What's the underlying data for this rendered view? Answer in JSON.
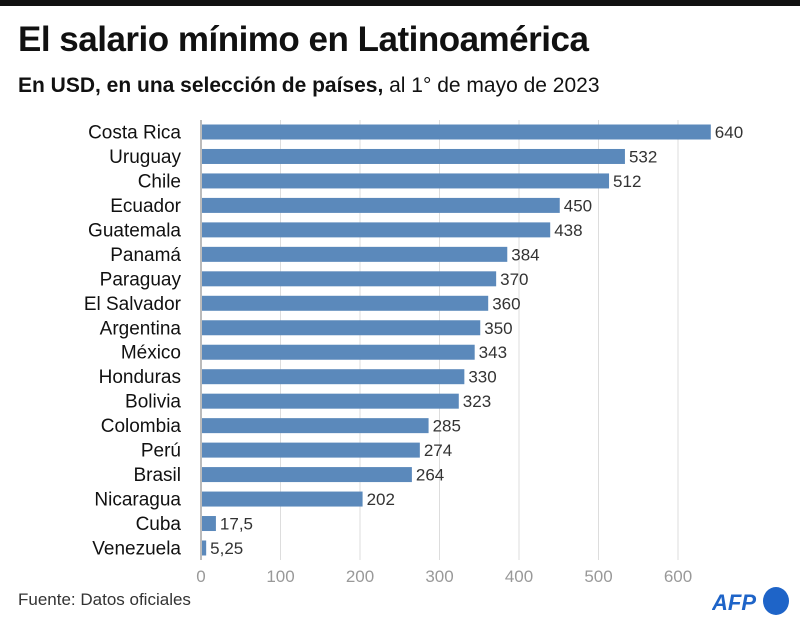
{
  "title": "El salario mínimo en Latinoamérica",
  "subtitle_bold": "En USD, en una selección de países,",
  "subtitle_rest": " al 1° de mayo de 2023",
  "source": "Fuente: Datos oficiales",
  "logo": "AFP",
  "colors": {
    "bar": "#5b89bb",
    "grid": "#dddddd",
    "logo": "#1e64c8"
  },
  "chart_data": {
    "type": "bar",
    "orientation": "horizontal",
    "title": "El salario mínimo en Latinoamérica",
    "subtitle": "En USD, en una selección de países, al 1° de mayo de 2023",
    "categories": [
      "Costa Rica",
      "Uruguay",
      "Chile",
      "Ecuador",
      "Guatemala",
      "Panamá",
      "Paraguay",
      "El Salvador",
      "Argentina",
      "México",
      "Honduras",
      "Bolivia",
      "Colombia",
      "Perú",
      "Brasil",
      "Nicaragua",
      "Cuba",
      "Venezuela"
    ],
    "values": [
      640,
      532,
      512,
      450,
      438,
      384,
      370,
      360,
      350,
      343,
      330,
      323,
      285,
      274,
      264,
      202,
      17.5,
      5.25
    ],
    "value_labels": [
      "640",
      "532",
      "512",
      "450",
      "438",
      "384",
      "370",
      "360",
      "350",
      "343",
      "330",
      "323",
      "285",
      "274",
      "264",
      "202",
      "17,5",
      "5,25"
    ],
    "xlim": [
      0,
      640
    ],
    "xticks": [
      0,
      100,
      200,
      300,
      400,
      500,
      600
    ],
    "xtick_labels": [
      "0",
      "100",
      "200",
      "300",
      "400",
      "500",
      "600"
    ],
    "grid": true,
    "xlabel": "",
    "ylabel": ""
  }
}
